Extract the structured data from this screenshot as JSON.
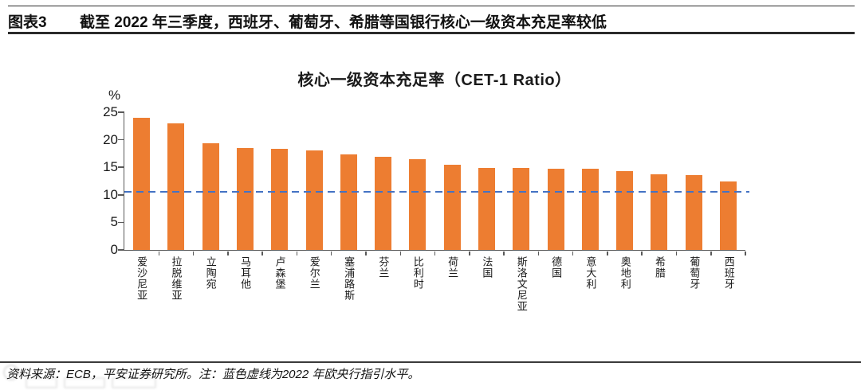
{
  "figure_header": {
    "label": "图表3",
    "title": "截至 2022 年三季度，西班牙、葡萄牙、希腊等国银行核心一级资本充足率较低"
  },
  "chart_data": {
    "type": "bar",
    "title": "核心一级资本充足率（CET-1 Ratio）",
    "unit_label": "%",
    "categories": [
      "爱沙尼亚",
      "拉脱维亚",
      "立陶宛",
      "马耳他",
      "卢森堡",
      "爱尔兰",
      "塞浦路斯",
      "芬兰",
      "比利时",
      "荷兰",
      "法国",
      "斯洛文尼亚",
      "德国",
      "意大利",
      "奥地利",
      "希腊",
      "葡萄牙",
      "西班牙"
    ],
    "values": [
      24.0,
      23.0,
      19.3,
      18.5,
      18.3,
      18.0,
      17.3,
      16.9,
      16.5,
      15.4,
      14.9,
      14.9,
      14.8,
      14.7,
      14.3,
      13.8,
      13.6,
      12.4
    ],
    "ylim": [
      0,
      25
    ],
    "yticks": [
      0,
      5,
      10,
      15,
      20,
      25
    ],
    "bar_color": "#ED7D31",
    "axis_color": "#595959",
    "grid": false,
    "legend": "none",
    "reference_line": {
      "value": 10.5,
      "color": "#4472C4",
      "style": "dashed",
      "meaning": "2022 年欧央行指引水平"
    }
  },
  "footer": {
    "source_note": "资料来源：ECB，平安证券研究所。注：蓝色虚线为2022 年欧央行指引水平。"
  }
}
